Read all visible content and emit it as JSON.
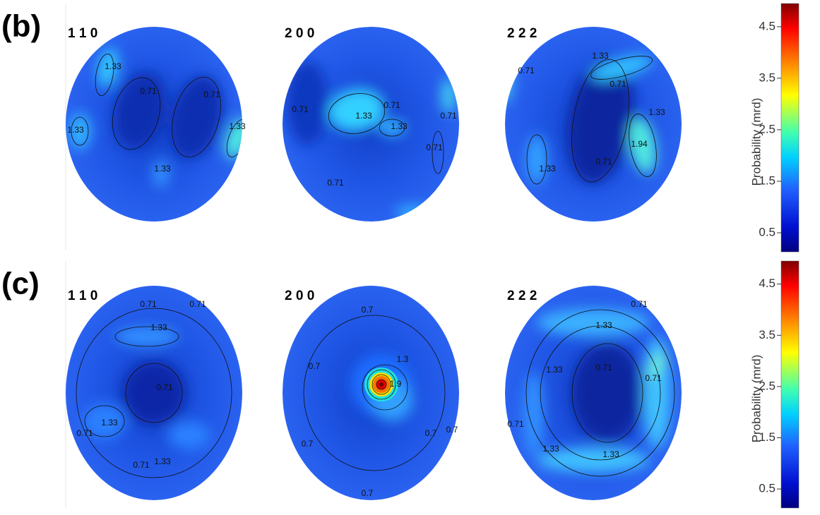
{
  "panels": [
    {
      "label": "(b)",
      "figures": [
        {
          "title": "1 1 0",
          "contour_labels": [
            "1.33",
            "0.71",
            "1.33",
            "0.71",
            "1.33",
            "1.33"
          ]
        },
        {
          "title": "2 0 0",
          "contour_labels": [
            "0.71",
            "1.33",
            "1.33",
            "0.71",
            "0.71",
            "0.71",
            "0.71"
          ]
        },
        {
          "title": "2 2 2",
          "contour_labels": [
            "1.33",
            "0.71",
            "0.71",
            "1.33",
            "1.94",
            "0.71",
            "1.33"
          ]
        }
      ],
      "colorbar": {
        "label": "Probability (mrd)",
        "lim": [
          0.13,
          4.95
        ],
        "ticks": [
          0.5,
          1.5,
          2.5,
          3.5,
          4.5
        ]
      }
    },
    {
      "label": "(c)",
      "figures": [
        {
          "title": "1 1 0",
          "contour_labels": [
            "0.71",
            "0.71",
            "1.33",
            "0.71",
            "1.33",
            "0.71",
            "1.33",
            "0.71"
          ]
        },
        {
          "title": "2 0 0",
          "contour_labels": [
            "0.7",
            "0.7",
            "0.7",
            "1.3",
            "1.9",
            "0.7",
            "0.7",
            "0.7"
          ]
        },
        {
          "title": "2 2 2",
          "contour_labels": [
            "0.71",
            "1.33",
            "1.33",
            "0.71",
            "0.71",
            "1.33",
            "1.33",
            "0.71"
          ]
        }
      ],
      "colorbar": {
        "label": "Probability (mrd)",
        "lim": [
          0.13,
          4.95
        ],
        "ticks": [
          0.5,
          1.5,
          2.5,
          3.5,
          4.5
        ]
      }
    }
  ]
}
